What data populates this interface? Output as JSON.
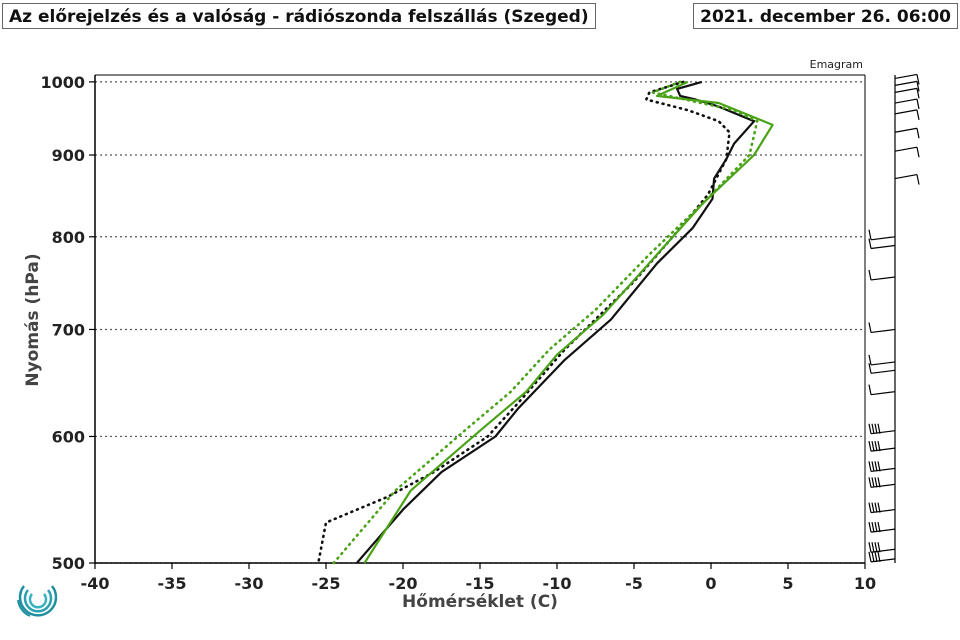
{
  "header": {
    "title": "Az előrejelzés és a valóság - rádiószonda felszállás (Szeged)",
    "datetime": "2021. december 26. 06:00",
    "emagram_label": "Emagram"
  },
  "colors": {
    "observed": "#111111",
    "forecast": "#4aa317",
    "grid": "#555555"
  },
  "chart_data": {
    "type": "line",
    "xlabel": "Hőmérséklet (C)",
    "ylabel": "Nyomás (hPa)",
    "xlim": [
      -40,
      10
    ],
    "ylim": [
      1010,
      500
    ],
    "yscale": "log",
    "xticks": [
      -40,
      -35,
      -30,
      -25,
      -20,
      -15,
      -10,
      -5,
      0,
      5,
      10
    ],
    "yticks": [
      500,
      600,
      700,
      800,
      900,
      1000
    ],
    "grid": "horizontal dotted at y ticks",
    "series": [
      {
        "color": "#111111",
        "style": "solid",
        "points": [
          [
            -0.6,
            1000
          ],
          [
            -2.2,
            990
          ],
          [
            -2.0,
            980
          ],
          [
            -1.0,
            975
          ],
          [
            0.5,
            965
          ],
          [
            2.8,
            945
          ],
          [
            1.5,
            915
          ],
          [
            1.0,
            895
          ],
          [
            0.2,
            870
          ],
          [
            0.1,
            845
          ],
          [
            -1.2,
            810
          ],
          [
            -3.5,
            770
          ],
          [
            -6.5,
            710
          ],
          [
            -9.5,
            670
          ],
          [
            -12.5,
            625
          ],
          [
            -14.0,
            600
          ],
          [
            -17.5,
            570
          ],
          [
            -20.0,
            540
          ],
          [
            -23.0,
            500
          ]
        ]
      },
      {
        "color": "#111111",
        "style": "dotted",
        "points": [
          [
            -1.8,
            1000
          ],
          [
            -4.0,
            985
          ],
          [
            -4.2,
            975
          ],
          [
            -1.5,
            960
          ],
          [
            0.5,
            945
          ],
          [
            1.2,
            930
          ],
          [
            1.0,
            895
          ],
          [
            -0.2,
            850
          ],
          [
            -2.0,
            810
          ],
          [
            -5.0,
            750
          ],
          [
            -9.5,
            680
          ],
          [
            -12.5,
            630
          ],
          [
            -14.5,
            600
          ],
          [
            -18.0,
            570
          ],
          [
            -21.0,
            550
          ],
          [
            -25.0,
            530
          ],
          [
            -25.5,
            500
          ]
        ]
      },
      {
        "color": "#4aa317",
        "style": "solid",
        "points": [
          [
            -1.5,
            1000
          ],
          [
            -3.5,
            980
          ],
          [
            0.5,
            970
          ],
          [
            4.0,
            940
          ],
          [
            2.8,
            900
          ],
          [
            -0.5,
            840
          ],
          [
            -3.5,
            780
          ],
          [
            -7.0,
            715
          ],
          [
            -10.0,
            675
          ],
          [
            -12.0,
            640
          ],
          [
            -15.0,
            605
          ],
          [
            -19.5,
            555
          ],
          [
            -22.5,
            500
          ]
        ]
      },
      {
        "color": "#4aa317",
        "style": "dotted",
        "points": [
          [
            -2.0,
            1000
          ],
          [
            -3.8,
            985
          ],
          [
            1.5,
            960
          ],
          [
            3.0,
            945
          ],
          [
            2.5,
            900
          ],
          [
            -0.5,
            840
          ],
          [
            -4.0,
            780
          ],
          [
            -7.5,
            720
          ],
          [
            -10.5,
            680
          ],
          [
            -13.0,
            640
          ],
          [
            -16.0,
            605
          ],
          [
            -20.5,
            555
          ],
          [
            -24.5,
            500
          ]
        ]
      }
    ],
    "wind_barbs_pressures": [
      1005,
      995,
      985,
      970,
      955,
      930,
      905,
      870,
      800,
      790,
      755,
      700,
      668,
      660,
      640,
      605,
      590,
      573,
      560,
      540,
      525,
      510,
      503
    ]
  }
}
